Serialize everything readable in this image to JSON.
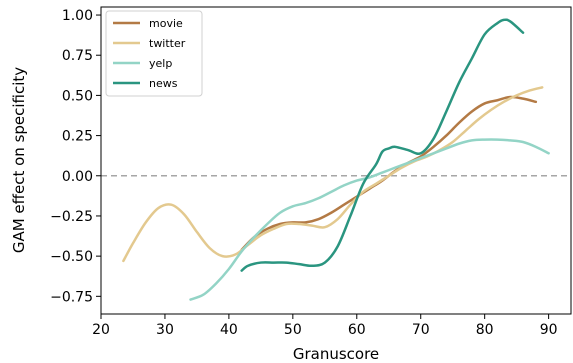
{
  "chart_data": {
    "type": "line",
    "title": "",
    "xlabel": "Granuscore",
    "ylabel": "GAM effect on specificity",
    "xlim": [
      20,
      93.5
    ],
    "ylim": [
      -0.86,
      1.05
    ],
    "xticks": [
      20,
      30,
      40,
      50,
      60,
      70,
      80,
      90
    ],
    "xtick_labels": [
      "20",
      "30",
      "40",
      "50",
      "60",
      "70",
      "80",
      "90"
    ],
    "yticks": [
      -0.75,
      -0.5,
      -0.25,
      0.0,
      0.25,
      0.5,
      0.75,
      1.0
    ],
    "ytick_labels": [
      "−0.75",
      "−0.50",
      "−0.25",
      "0.00",
      "0.25",
      "0.50",
      "0.75",
      "1.00"
    ],
    "grid": false,
    "legend": "top-left",
    "reference_line": {
      "y": 0.0,
      "style": "dashed",
      "color": "#a6a6a6"
    },
    "series": [
      {
        "name": "movie",
        "color": "#b37a45",
        "x": [
          42,
          44,
          46,
          48,
          50,
          52,
          54,
          56,
          58,
          60,
          62,
          64,
          66,
          68,
          70,
          72,
          74,
          76,
          78,
          80,
          82,
          84,
          86,
          88
        ],
        "y": [
          -0.46,
          -0.38,
          -0.33,
          -0.3,
          -0.29,
          -0.29,
          -0.27,
          -0.23,
          -0.18,
          -0.13,
          -0.08,
          -0.03,
          0.03,
          0.08,
          0.12,
          0.18,
          0.25,
          0.33,
          0.4,
          0.45,
          0.47,
          0.49,
          0.48,
          0.46
        ]
      },
      {
        "name": "twitter",
        "color": "#e3c98f",
        "x": [
          23.5,
          25,
          27,
          29,
          31,
          33,
          35,
          37,
          39,
          41,
          43,
          45,
          47,
          49,
          51,
          53,
          55,
          57,
          59,
          61,
          63,
          65,
          67,
          69,
          71,
          73,
          75,
          77,
          79,
          81,
          83,
          85,
          87,
          89
        ],
        "y": [
          -0.53,
          -0.42,
          -0.29,
          -0.2,
          -0.18,
          -0.24,
          -0.35,
          -0.45,
          -0.5,
          -0.49,
          -0.43,
          -0.37,
          -0.33,
          -0.3,
          -0.3,
          -0.31,
          -0.32,
          -0.27,
          -0.18,
          -0.1,
          -0.05,
          0.0,
          0.05,
          0.09,
          0.12,
          0.16,
          0.21,
          0.28,
          0.35,
          0.41,
          0.46,
          0.5,
          0.53,
          0.55
        ]
      },
      {
        "name": "yelp",
        "color": "#93d4c6",
        "x": [
          34,
          36,
          38,
          40,
          42,
          44,
          46,
          48,
          50,
          52,
          54,
          56,
          58,
          60,
          62,
          64,
          66,
          68,
          70,
          72,
          74,
          76,
          78,
          80,
          82,
          84,
          86,
          88,
          90
        ],
        "y": [
          -0.77,
          -0.74,
          -0.67,
          -0.58,
          -0.47,
          -0.38,
          -0.3,
          -0.23,
          -0.19,
          -0.17,
          -0.14,
          -0.1,
          -0.06,
          -0.03,
          -0.01,
          0.02,
          0.05,
          0.08,
          0.11,
          0.14,
          0.17,
          0.2,
          0.22,
          0.225,
          0.225,
          0.22,
          0.21,
          0.18,
          0.14
        ]
      },
      {
        "name": "news",
        "color": "#2a9580",
        "x": [
          42,
          43,
          45,
          47,
          49,
          51,
          53,
          55,
          57,
          59,
          61,
          63,
          64,
          65,
          66,
          68,
          70,
          72,
          74,
          76,
          78,
          80,
          82,
          83,
          84,
          86
        ],
        "y": [
          -0.59,
          -0.56,
          -0.54,
          -0.54,
          -0.54,
          -0.55,
          -0.56,
          -0.54,
          -0.44,
          -0.25,
          -0.05,
          0.07,
          0.15,
          0.17,
          0.18,
          0.16,
          0.14,
          0.23,
          0.4,
          0.58,
          0.73,
          0.88,
          0.95,
          0.97,
          0.96,
          0.89
        ]
      }
    ]
  }
}
